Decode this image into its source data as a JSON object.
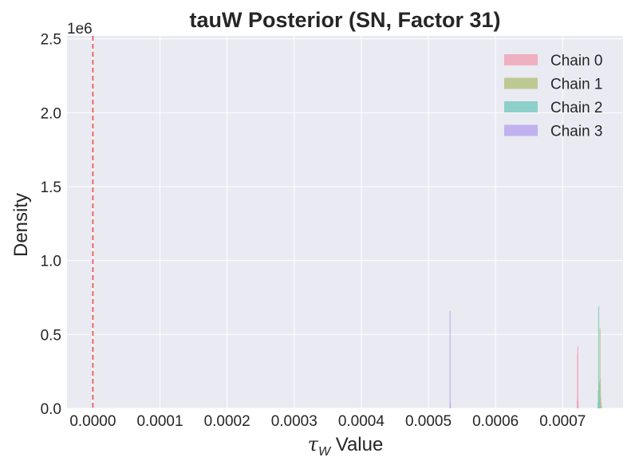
{
  "chart_data": {
    "type": "histogram",
    "title": "tauW Posterior (SN, Factor 31)",
    "xlabel_symbol": "τ",
    "xlabel_subscript": "W",
    "xlabel_suffix": " Value",
    "ylabel": "Density",
    "y_offset_label": "1e6",
    "xlim": [
      -3.85e-05,
      0.00079
    ],
    "ylim": [
      0,
      2.52
    ],
    "x_ticks": [
      0.0,
      0.0001,
      0.0002,
      0.0003,
      0.0004,
      0.0005,
      0.0006,
      0.0007
    ],
    "x_tick_labels": [
      "0.0000",
      "0.0001",
      "0.0002",
      "0.0003",
      "0.0004",
      "0.0005",
      "0.0006",
      "0.0007"
    ],
    "y_ticks": [
      0.0,
      0.5,
      1.0,
      1.5,
      2.0,
      2.5
    ],
    "y_tick_labels": [
      "0.0",
      "0.5",
      "1.0",
      "1.5",
      "2.0",
      "2.5"
    ],
    "grid": true,
    "legend_position": "top-right",
    "reference_line": {
      "x": 0.0,
      "color": "#ef5b5b",
      "style": "dashed"
    },
    "series": [
      {
        "name": "Chain 0",
        "color": "#f0a6b8",
        "x": [
          0.000721,
          0.0007215,
          0.000722,
          0.0007225
        ],
        "y": [
          0.06,
          0.37,
          0.42,
          0.05
        ]
      },
      {
        "name": "Chain 1",
        "color": "#b5c383",
        "x": [
          0.000754,
          0.0007545,
          0.000755,
          0.0007555,
          0.000756,
          0.0007565,
          0.000757
        ],
        "y": [
          0.06,
          0.16,
          0.54,
          0.2,
          0.08,
          0.04,
          0.02
        ]
      },
      {
        "name": "Chain 2",
        "color": "#7ccbc3",
        "x": [
          0.000752,
          0.0007525,
          0.000753,
          0.0007535,
          0.000754,
          0.0007545
        ],
        "y": [
          0.04,
          0.12,
          0.69,
          0.18,
          0.06,
          0.02
        ]
      },
      {
        "name": "Chain 3",
        "color": "#b9a8ee",
        "x": [
          0.0005315,
          0.000532
        ],
        "y": [
          0.66,
          0.04
        ]
      }
    ]
  }
}
